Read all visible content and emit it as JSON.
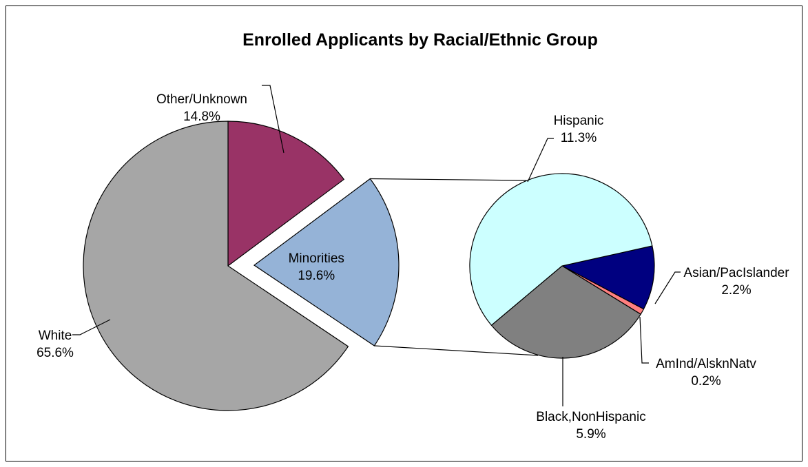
{
  "chart_data": [
    {
      "type": "pie",
      "title": "Enrolled Applicants by Racial/Ethnic Group",
      "slices": [
        {
          "label": "White",
          "value": 65.6,
          "value_label": "65.6%",
          "color": "#a6a6a6"
        },
        {
          "label": "Other/Unknown",
          "value": 14.8,
          "value_label": "14.8%",
          "color": "#993366"
        },
        {
          "label": "Minorities",
          "value": 19.6,
          "value_label": "19.6%",
          "color": "#95b3d7",
          "exploded": true
        }
      ]
    },
    {
      "type": "pie",
      "breakdown_of": "Minorities",
      "slices": [
        {
          "label": "Hispanic",
          "value": 11.3,
          "value_label": "11.3%",
          "color": "#ccffff"
        },
        {
          "label": "Asian/PacIslander",
          "value": 2.2,
          "value_label": "2.2%",
          "color": "#000080"
        },
        {
          "label": "AmInd/AlsknNatv",
          "value": 0.2,
          "value_label": "0.2%",
          "color": "#ff8080"
        },
        {
          "label": "Black,NonHispanic",
          "value": 5.9,
          "value_label": "5.9%",
          "color": "#808080"
        }
      ]
    }
  ]
}
